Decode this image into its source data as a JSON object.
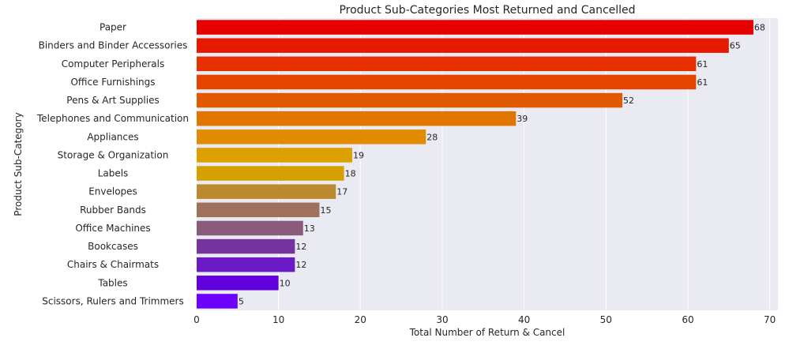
{
  "chart_data": {
    "type": "bar",
    "orientation": "horizontal",
    "title": "Product Sub-Categories Most Returned and Cancelled",
    "xlabel": "Total Number of Return & Cancel",
    "ylabel": "Product Sub-Category",
    "xlim": [
      0,
      71
    ],
    "xticks": [
      0,
      10,
      20,
      30,
      40,
      50,
      60,
      70
    ],
    "grid": true,
    "background": "#eaeaf2",
    "categories": [
      "Paper",
      "Binders and Binder Accessories",
      "Computer Peripherals",
      "Office Furnishings",
      "Pens & Art Supplies",
      "Telephones and Communication",
      "Appliances",
      "Storage & Organization",
      "Labels",
      "Envelopes",
      "Rubber Bands",
      "Office Machines",
      "Bookcases",
      "Chairs & Chairmats",
      "Tables",
      "Scissors, Rulers and Trimmers"
    ],
    "values": [
      68,
      65,
      61,
      61,
      52,
      39,
      28,
      19,
      18,
      17,
      15,
      13,
      12,
      12,
      10,
      5
    ],
    "colors": [
      "#e60000",
      "#e61a00",
      "#e63000",
      "#e54300",
      "#e25a00",
      "#e27400",
      "#e18b00",
      "#de9f00",
      "#d5a100",
      "#bb8a2e",
      "#a0705e",
      "#8a5a7b",
      "#7633a0",
      "#6b1ac5",
      "#6100dc",
      "#6b00ff"
    ]
  }
}
